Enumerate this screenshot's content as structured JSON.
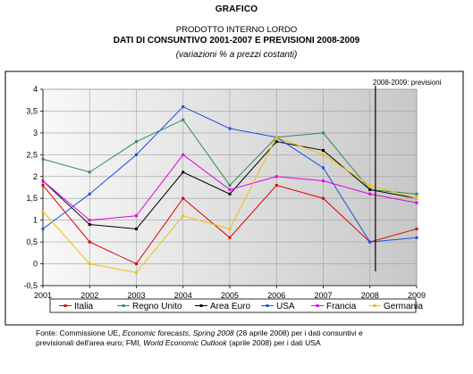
{
  "header": {
    "section": "GRAFICO",
    "title": "PRODOTTO INTERNO LORDO",
    "subtitle": "DATI DI CONSUNTIVO 2001-2007 E PREVISIONI 2008-2009",
    "note": "(variazioni % a prezzi costanti)"
  },
  "chart_data": {
    "type": "line",
    "x": [
      "2001",
      "2002",
      "2003",
      "2004",
      "2005",
      "2006",
      "2007",
      "2008",
      "2009"
    ],
    "ylim": [
      -0.5,
      4
    ],
    "yticks": [
      "-0,5",
      "0",
      "0,5",
      "1",
      "1,5",
      "2",
      "2,5",
      "3",
      "3,5",
      "4"
    ],
    "grid": true,
    "legend_position": "bottom",
    "annotation": "2008-2009: previsioni",
    "series": [
      {
        "name": "Italia",
        "color": "#e00000",
        "values": [
          1.8,
          0.5,
          0.0,
          1.5,
          0.6,
          1.8,
          1.5,
          0.5,
          0.8
        ]
      },
      {
        "name": "Regno Unito",
        "color": "#2e8b57",
        "values": [
          2.4,
          2.1,
          2.8,
          3.3,
          1.8,
          2.9,
          3.0,
          1.7,
          1.6
        ]
      },
      {
        "name": "Area Euro",
        "color": "#000000",
        "values": [
          1.9,
          0.9,
          0.8,
          2.1,
          1.6,
          2.8,
          2.6,
          1.7,
          1.5
        ]
      },
      {
        "name": "USA",
        "color": "#1f4fe0",
        "values": [
          0.8,
          1.6,
          2.5,
          3.6,
          3.1,
          2.9,
          2.2,
          0.5,
          0.6
        ]
      },
      {
        "name": "Francia",
        "color": "#e000e0",
        "values": [
          1.9,
          1.0,
          1.1,
          2.5,
          1.7,
          2.0,
          1.9,
          1.6,
          1.4
        ]
      },
      {
        "name": "Germania",
        "color": "#f0c000",
        "values": [
          1.2,
          0.0,
          -0.2,
          1.1,
          0.8,
          2.9,
          2.5,
          1.8,
          1.5
        ]
      }
    ]
  },
  "footnote": {
    "line1_a": "Fonte: Commissione UE, ",
    "line1_b": "Economic forecasts, Spring 2008",
    "line1_c": " (28 aprile 2008) per i dati consuntivi e",
    "line2_a": "previsionali dell'area euro; FMI, ",
    "line2_b": "World Economic Outlook",
    "line2_c": " (aprile 2008) per i dati USA"
  }
}
